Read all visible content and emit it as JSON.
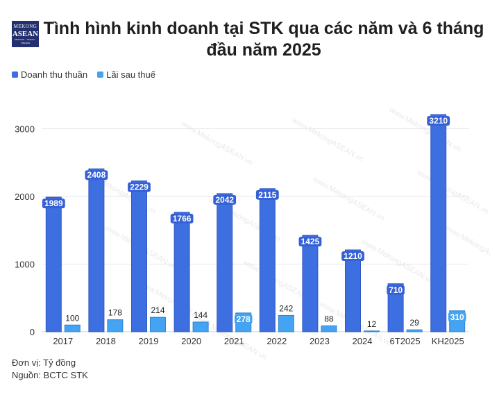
{
  "logo": {
    "line1": "MEKONG",
    "line2": "ASEAN",
    "line3": "MEKONG · ASEAN · TRENDS"
  },
  "watermark": "www.MekongASEAN.vn",
  "colors": {
    "revenue": "#3d6fe0",
    "profit": "#44a3f2",
    "grid": "#e6e6e6",
    "label_bg": "#3560d6"
  },
  "footer": {
    "unit": "Đơn vị: Tỷ đồng",
    "source": "Nguồn: BCTC STK"
  },
  "chart_data": {
    "type": "bar",
    "title": "Tình hình kinh doanh tại STK qua các năm và 6 tháng đầu năm 2025",
    "categories": [
      "2017",
      "2018",
      "2019",
      "2020",
      "2021",
      "2022",
      "2023",
      "2024",
      "6T2025",
      "KH2025"
    ],
    "series": [
      {
        "name": "Doanh thu thuần",
        "values": [
          1989,
          2408,
          2229,
          1766,
          2042,
          2115,
          1425,
          1210,
          710,
          3210
        ]
      },
      {
        "name": "Lãi sau thuế",
        "values": [
          100,
          178,
          214,
          144,
          278,
          242,
          88,
          12,
          29,
          310
        ]
      }
    ],
    "ylim": [
      0,
      3400
    ],
    "yticks": [
      "0",
      "1000",
      "2000",
      "3000"
    ],
    "ytick_values": [
      0,
      1000,
      2000,
      3000
    ],
    "legend_position": "top-left",
    "grid": true
  }
}
